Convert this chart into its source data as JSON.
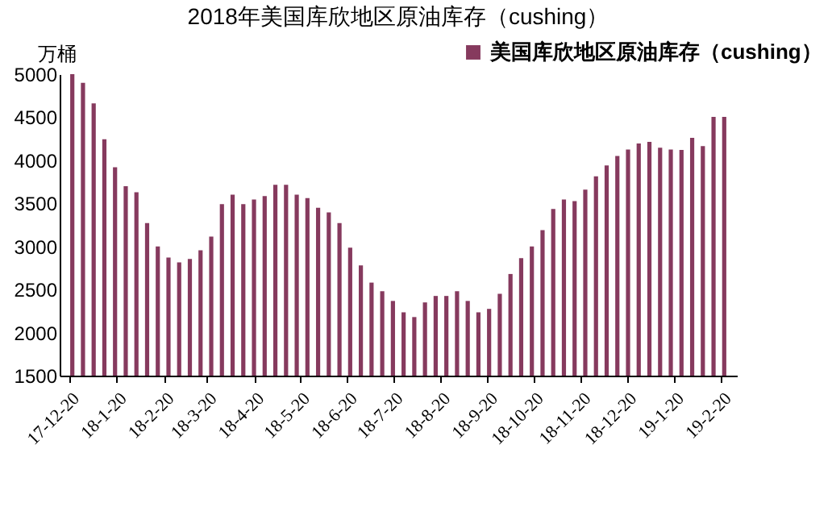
{
  "chart_data": {
    "type": "bar",
    "title": "2018年美国库欣地区原油库存（cushing）",
    "ylabel": "万桶",
    "x": [
      "2017-12-22",
      "2017-12-29",
      "2018-01-05",
      "2018-01-12",
      "2018-01-19",
      "2018-01-26",
      "2018-02-02",
      "2018-02-09",
      "2018-02-16",
      "2018-02-23",
      "2018-03-02",
      "2018-03-09",
      "2018-03-16",
      "2018-03-23",
      "2018-03-30",
      "2018-04-06",
      "2018-04-13",
      "2018-04-20",
      "2018-04-27",
      "2018-05-04",
      "2018-05-11",
      "2018-05-18",
      "2018-05-25",
      "2018-06-01",
      "2018-06-08",
      "2018-06-15",
      "2018-06-22",
      "2018-06-29",
      "2018-07-06",
      "2018-07-13",
      "2018-07-20",
      "2018-07-27",
      "2018-08-03",
      "2018-08-10",
      "2018-08-17",
      "2018-08-24",
      "2018-08-31",
      "2018-09-07",
      "2018-09-14",
      "2018-09-21",
      "2018-09-28",
      "2018-10-05",
      "2018-10-12",
      "2018-10-19",
      "2018-10-26",
      "2018-11-02",
      "2018-11-09",
      "2018-11-16",
      "2018-11-23",
      "2018-11-30",
      "2018-12-07",
      "2018-12-14",
      "2018-12-21",
      "2018-12-28",
      "2019-01-04",
      "2019-01-11",
      "2019-01-18",
      "2019-01-25",
      "2019-02-01",
      "2019-02-08",
      "2019-02-15",
      "2019-02-22"
    ],
    "series": [
      {
        "name": "美国库欣地区原油库存（cushing）",
        "color": "#863a5e",
        "values": [
          5000,
          4900,
          4660,
          4245,
          3920,
          3700,
          3630,
          3270,
          3000,
          2870,
          2815,
          2855,
          2955,
          3115,
          3490,
          3600,
          3490,
          3545,
          3585,
          3715,
          3715,
          3600,
          3560,
          3450,
          3395,
          3270,
          2985,
          2780,
          2580,
          2480,
          2367,
          2235,
          2180,
          2350,
          2425,
          2425,
          2480,
          2367,
          2235,
          2275,
          2450,
          2680,
          2865,
          3000,
          3190,
          3435,
          3545,
          3525,
          3660,
          3815,
          3940,
          4050,
          4125,
          4195,
          4215,
          4145,
          4125,
          4120,
          4260,
          4165,
          4505,
          4505
        ]
      }
    ],
    "xlim": [
      "2017-12-19",
      "2019-02-25"
    ],
    "xticks": [
      {
        "value": "2017-12-20",
        "label": "17-12-20"
      },
      {
        "value": "2018-01-20",
        "label": "18-1-20"
      },
      {
        "value": "2018-02-20",
        "label": "18-2-20"
      },
      {
        "value": "2018-03-20",
        "label": "18-3-20"
      },
      {
        "value": "2018-04-20",
        "label": "18-4-20"
      },
      {
        "value": "2018-05-20",
        "label": "18-5-20"
      },
      {
        "value": "2018-06-20",
        "label": "18-6-20"
      },
      {
        "value": "2018-07-20",
        "label": "18-7-20"
      },
      {
        "value": "2018-08-20",
        "label": "18-8-20"
      },
      {
        "value": "2018-09-20",
        "label": "18-9-20"
      },
      {
        "value": "2018-10-20",
        "label": "18-10-20"
      },
      {
        "value": "2018-11-20",
        "label": "18-11-20"
      },
      {
        "value": "2018-12-20",
        "label": "18-12-20"
      },
      {
        "value": "2019-01-20",
        "label": "19-1-20"
      },
      {
        "value": "2019-02-20",
        "label": "19-2-20"
      }
    ],
    "ylim": [
      1500,
      5000
    ],
    "yticks": [
      1500,
      2000,
      2500,
      3000,
      3500,
      4000,
      4500,
      5000
    ],
    "grid": false,
    "legend": "top right"
  }
}
